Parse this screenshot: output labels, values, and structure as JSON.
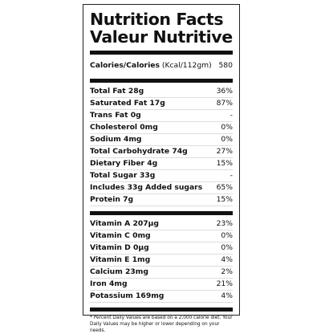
{
  "header": {
    "title_lines": [
      "Nutrition Facts",
      "Valeur Nutritive"
    ]
  },
  "calories": {
    "label": "Calories/Calories",
    "unit": "(Kcal/112gm)",
    "value": "580"
  },
  "nutrients": [
    [
      "Total Fat 28g",
      "36%"
    ],
    [
      "Saturated Fat 17g",
      "87%"
    ],
    [
      "Trans Fat 0g",
      "-"
    ],
    [
      "Cholesterol 0mg",
      "0%"
    ],
    [
      "Sodium 4mg",
      "0%"
    ],
    [
      "Total Carbohydrate 74g",
      "27%"
    ],
    [
      "Dietary Fiber 4g",
      "15%"
    ],
    [
      "Total Sugar 33g",
      "-"
    ],
    [
      "Includes 33g Added sugars",
      "65%"
    ],
    [
      "Protein 7g",
      "15%"
    ]
  ],
  "vitamins": [
    [
      "Vitamin A 207µg",
      "23%"
    ],
    [
      "Vitamin C 0mg",
      "0%"
    ],
    [
      "Vitamin D 0µg",
      "0%"
    ],
    [
      "Vitamin E 1mg",
      "4%"
    ],
    [
      "Calcium 23mg",
      "2%"
    ],
    [
      "Iron 4mg",
      "21%"
    ],
    [
      "Potassium 169mg",
      "4%"
    ]
  ],
  "footnote": "* Percent Daily Values are based on a 2,000 calorie diet. Your Daily Values may be higher or lower depending on your needs."
}
